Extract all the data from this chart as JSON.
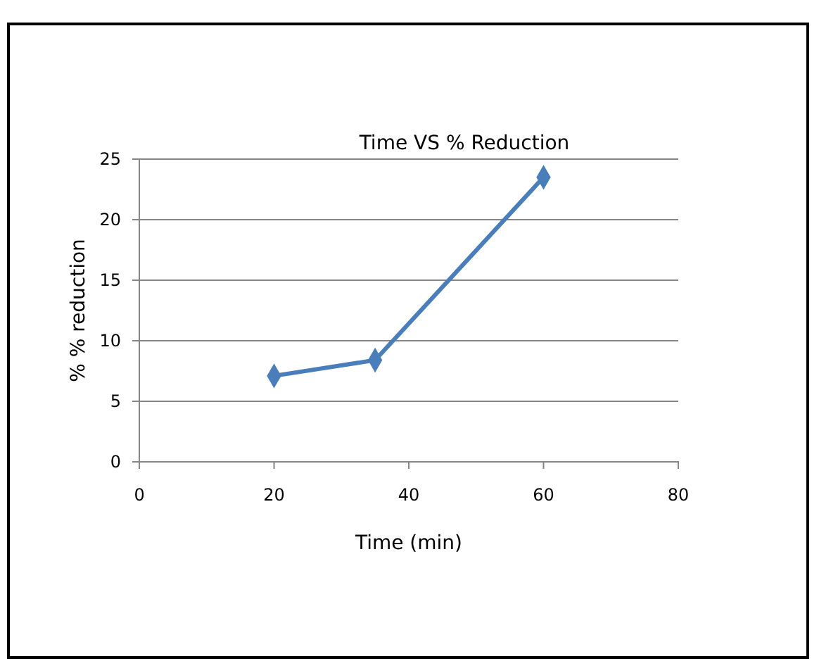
{
  "chart_data": {
    "type": "line",
    "title": "Time VS % Reduction",
    "xlabel": "Time (min)",
    "ylabel": "% % reduction",
    "x": [
      20,
      35,
      60
    ],
    "series": [
      {
        "color": "#4a7ebb",
        "values": [
          7.1,
          8.4,
          23.5
        ]
      }
    ],
    "xlim": [
      0,
      80
    ],
    "xticks": [
      0,
      20,
      40,
      60,
      80
    ],
    "ylim": [
      0,
      25
    ],
    "yticks": [
      0,
      5,
      10,
      15,
      20,
      25
    ],
    "grid": "y",
    "marker": "diamond",
    "line_style": "solid"
  }
}
